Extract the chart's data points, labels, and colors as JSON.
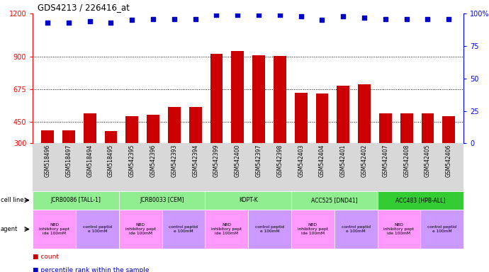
{
  "title": "GDS4213 / 226416_at",
  "samples": [
    "GSM518496",
    "GSM518497",
    "GSM518494",
    "GSM518495",
    "GSM542395",
    "GSM542396",
    "GSM542393",
    "GSM542394",
    "GSM542399",
    "GSM542400",
    "GSM542397",
    "GSM542398",
    "GSM542403",
    "GSM542404",
    "GSM542401",
    "GSM542402",
    "GSM542407",
    "GSM542408",
    "GSM542405",
    "GSM542406"
  ],
  "bar_values": [
    390,
    390,
    510,
    385,
    490,
    500,
    550,
    550,
    920,
    940,
    910,
    905,
    650,
    645,
    700,
    710,
    510,
    510,
    510,
    490
  ],
  "dot_values": [
    93,
    93,
    94,
    93,
    95,
    96,
    96,
    96,
    99,
    99,
    99,
    99,
    98,
    95,
    98,
    97,
    96,
    96,
    96,
    96
  ],
  "cell_lines": [
    {
      "label": "JCRB0086 [TALL-1]",
      "start": 0,
      "end": 4,
      "color": "#90EE90"
    },
    {
      "label": "JCRB0033 [CEM]",
      "start": 4,
      "end": 8,
      "color": "#90EE90"
    },
    {
      "label": "KOPT-K",
      "start": 8,
      "end": 12,
      "color": "#90EE90"
    },
    {
      "label": "ACC525 [DND41]",
      "start": 12,
      "end": 16,
      "color": "#90EE90"
    },
    {
      "label": "ACC483 [HPB-ALL]",
      "start": 16,
      "end": 20,
      "color": "#33CC33"
    }
  ],
  "agents": [
    {
      "label": "NBD\ninhibitory pept\nide 100mM",
      "start": 0,
      "end": 2,
      "color": "#FF99FF"
    },
    {
      "label": "control peptid\ne 100mM",
      "start": 2,
      "end": 4,
      "color": "#CC99FF"
    },
    {
      "label": "NBD\ninhibitory pept\nide 100mM",
      "start": 4,
      "end": 6,
      "color": "#FF99FF"
    },
    {
      "label": "control peptid\ne 100mM",
      "start": 6,
      "end": 8,
      "color": "#CC99FF"
    },
    {
      "label": "NBD\ninhibitory pept\nide 100mM",
      "start": 8,
      "end": 10,
      "color": "#FF99FF"
    },
    {
      "label": "control peptid\ne 100mM",
      "start": 10,
      "end": 12,
      "color": "#CC99FF"
    },
    {
      "label": "NBD\ninhibitory pept\nide 100mM",
      "start": 12,
      "end": 14,
      "color": "#FF99FF"
    },
    {
      "label": "control peptid\ne 100mM",
      "start": 14,
      "end": 16,
      "color": "#CC99FF"
    },
    {
      "label": "NBD\ninhibitory pept\nide 100mM",
      "start": 16,
      "end": 18,
      "color": "#FF99FF"
    },
    {
      "label": "control peptid\ne 100mM",
      "start": 18,
      "end": 20,
      "color": "#CC99FF"
    }
  ],
  "ylim_left": [
    300,
    1200
  ],
  "ylim_right": [
    0,
    100
  ],
  "yticks_left": [
    300,
    450,
    675,
    900,
    1200
  ],
  "yticks_right": [
    0,
    25,
    50,
    75,
    100
  ],
  "bar_color": "#CC0000",
  "dot_color": "#0000CC",
  "bar_bottom": 300,
  "background_color": "#ffffff",
  "plot_bg": "#ffffff",
  "xticklabel_bg": "#d8d8d8"
}
